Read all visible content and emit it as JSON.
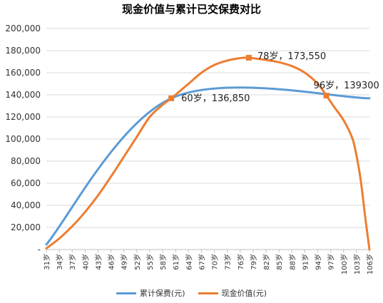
{
  "chart_data": {
    "type": "line",
    "title": "现金价值与累计已交保费对比",
    "ylim": [
      0,
      200000
    ],
    "y_ticks": [
      "-",
      "20,000",
      "40,000",
      "60,000",
      "80,000",
      "100,000",
      "120,000",
      "140,000",
      "160,000",
      "180,000",
      "200,000"
    ],
    "y_tick_values": [
      0,
      20000,
      40000,
      60000,
      80000,
      100000,
      120000,
      140000,
      160000,
      180000,
      200000
    ],
    "x_ticks": [
      "31岁",
      "34岁",
      "37岁",
      "40岁",
      "43岁",
      "46岁",
      "49岁",
      "52岁",
      "55岁",
      "58岁",
      "61岁",
      "64岁",
      "67岁",
      "70岁",
      "73岁",
      "76岁",
      "79岁",
      "82岁",
      "85岁",
      "88岁",
      "91岁",
      "94岁",
      "97岁",
      "100岁",
      "103岁",
      "106岁"
    ],
    "x_tick_values": [
      31,
      34,
      37,
      40,
      43,
      46,
      49,
      52,
      55,
      58,
      61,
      64,
      67,
      70,
      73,
      76,
      79,
      82,
      85,
      88,
      91,
      94,
      97,
      100,
      103,
      106
    ],
    "xlim": [
      31,
      106
    ],
    "grid": "horizontal",
    "legend_position": "bottom",
    "series": [
      {
        "name": "累计保费(元)",
        "color": "#5b9bd5",
        "x": [
          31,
          60,
          106
        ],
        "y": [
          4562,
          136850,
          136850
        ]
      },
      {
        "name": "现金价值(元)",
        "color": "#ed7d31",
        "x": [
          31,
          34,
          37,
          40,
          43,
          46,
          49,
          52,
          55,
          58,
          60,
          64,
          67,
          70,
          73,
          76,
          78,
          82,
          85,
          88,
          91,
          94,
          96,
          98,
          100,
          102,
          103,
          104,
          105,
          106
        ],
        "y": [
          1000,
          10000,
          21000,
          34000,
          49000,
          66000,
          84000,
          102000,
          120000,
          131000,
          136850,
          150000,
          160000,
          167000,
          171000,
          173200,
          173550,
          171500,
          169500,
          166000,
          160000,
          150000,
          139300,
          128000,
          117000,
          101000,
          85000,
          62000,
          30000,
          0
        ]
      }
    ],
    "markers": [
      {
        "series": "现金价值(元)",
        "x": 60,
        "y": 136850
      },
      {
        "series": "现金价值(元)",
        "x": 78,
        "y": 173550
      },
      {
        "series": "现金价值(元)",
        "x": 96,
        "y": 139300
      }
    ],
    "annotations": [
      {
        "text": "60岁，136,850",
        "x": 60,
        "y": 136850
      },
      {
        "text": "78岁，173,550",
        "x": 78,
        "y": 173550
      },
      {
        "text": "96岁，139300",
        "x": 96,
        "y": 139300
      }
    ]
  }
}
